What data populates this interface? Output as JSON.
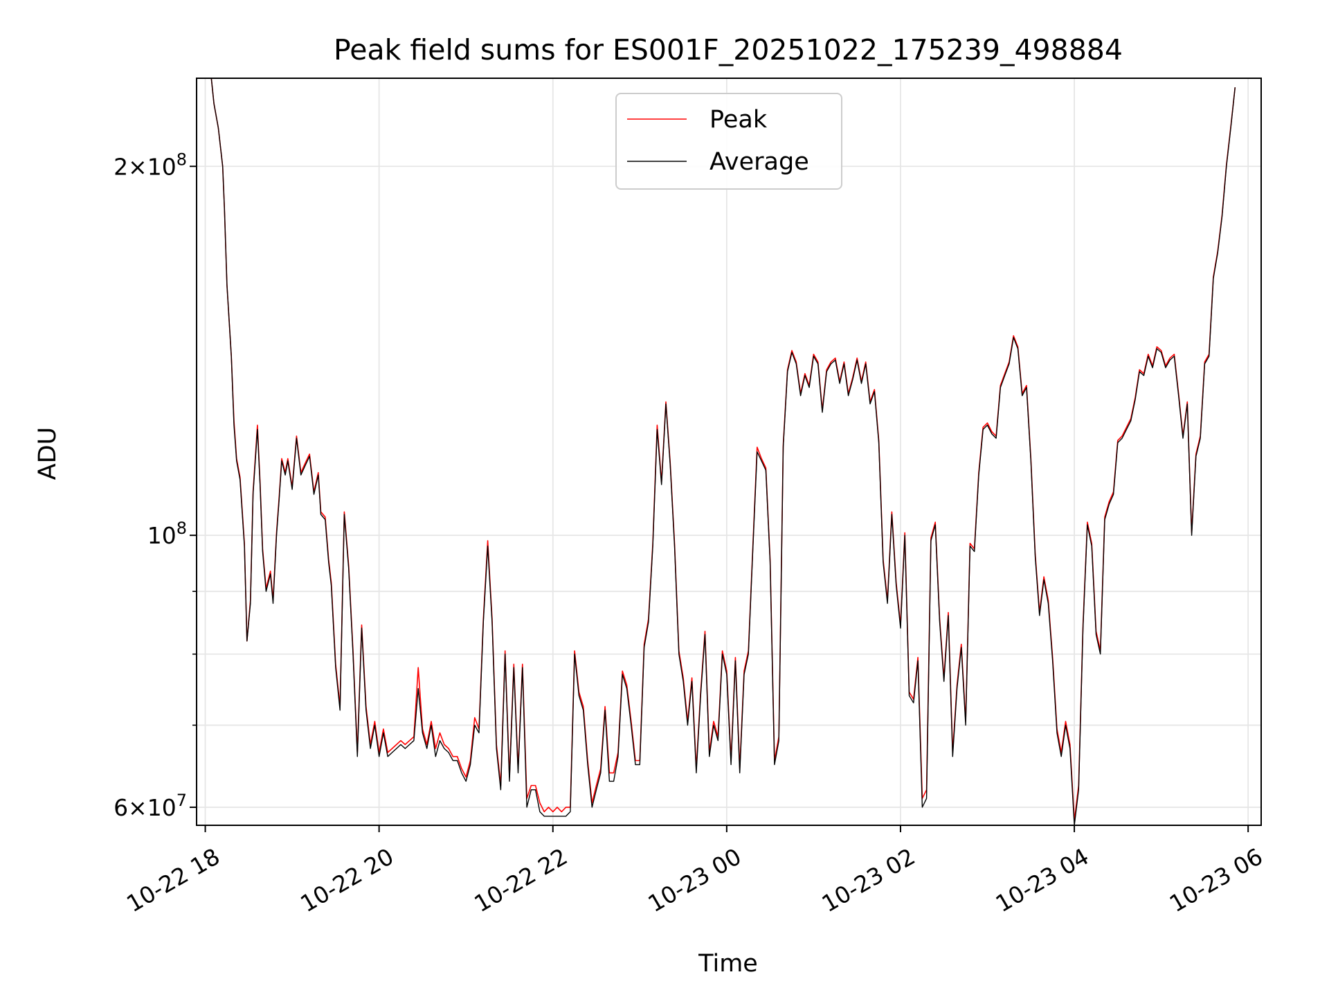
{
  "chart_data": {
    "type": "line",
    "title": "Peak field sums for ES001F_20251022_175239_498884",
    "xlabel": "Time",
    "ylabel": "ADU",
    "yscale": "log",
    "ylim": [
      58000000,
      236000000
    ],
    "xlim_hours": [
      -0.1,
      12.15
    ],
    "x_ticks": [
      {
        "hours": 0,
        "label": "10-22 18"
      },
      {
        "hours": 2,
        "label": "10-22 20"
      },
      {
        "hours": 4,
        "label": "10-22 22"
      },
      {
        "hours": 6,
        "label": "10-23 00"
      },
      {
        "hours": 8,
        "label": "10-23 02"
      },
      {
        "hours": 10,
        "label": "10-23 04"
      },
      {
        "hours": 12,
        "label": "10-23 06"
      }
    ],
    "y_major_ticks": [
      {
        "value": 60000000,
        "mantissa": "6",
        "base": "10",
        "exp": "7"
      },
      {
        "value": 100000000,
        "mantissa": "",
        "base": "10",
        "exp": "8"
      },
      {
        "value": 200000000,
        "mantissa": "2",
        "base": "10",
        "exp": "8"
      }
    ],
    "y_minor_ticks": [
      70000000,
      80000000,
      90000000
    ],
    "grid": true,
    "legend": {
      "location": "upper center",
      "entries": [
        "Peak",
        "Average"
      ]
    },
    "colors": {
      "peak": "#ff0000",
      "average": "#000000",
      "grid": "#e6e6e6"
    },
    "x_hours": [
      0.07,
      0.1,
      0.15,
      0.2,
      0.22,
      0.25,
      0.3,
      0.33,
      0.36,
      0.4,
      0.45,
      0.48,
      0.52,
      0.55,
      0.6,
      0.63,
      0.66,
      0.7,
      0.75,
      0.78,
      0.82,
      0.85,
      0.88,
      0.92,
      0.95,
      1.0,
      1.05,
      1.1,
      1.15,
      1.2,
      1.25,
      1.3,
      1.33,
      1.38,
      1.42,
      1.45,
      1.5,
      1.55,
      1.6,
      1.65,
      1.7,
      1.75,
      1.8,
      1.85,
      1.9,
      1.95,
      2.0,
      2.05,
      2.1,
      2.15,
      2.2,
      2.25,
      2.3,
      2.35,
      2.4,
      2.45,
      2.5,
      2.55,
      2.6,
      2.65,
      2.7,
      2.75,
      2.8,
      2.85,
      2.9,
      2.95,
      3.0,
      3.05,
      3.1,
      3.15,
      3.2,
      3.25,
      3.3,
      3.35,
      3.4,
      3.45,
      3.5,
      3.55,
      3.6,
      3.65,
      3.7,
      3.75,
      3.8,
      3.85,
      3.9,
      3.95,
      4.0,
      4.05,
      4.1,
      4.15,
      4.2,
      4.25,
      4.3,
      4.35,
      4.4,
      4.45,
      4.5,
      4.55,
      4.6,
      4.65,
      4.7,
      4.75,
      4.8,
      4.85,
      4.9,
      4.95,
      5.0,
      5.05,
      5.1,
      5.15,
      5.2,
      5.25,
      5.3,
      5.35,
      5.4,
      5.45,
      5.5,
      5.55,
      5.6,
      5.65,
      5.7,
      5.75,
      5.8,
      5.85,
      5.9,
      5.95,
      6.0,
      6.05,
      6.1,
      6.15,
      6.2,
      6.25,
      6.3,
      6.35,
      6.4,
      6.45,
      6.5,
      6.55,
      6.6,
      6.65,
      6.7,
      6.75,
      6.8,
      6.85,
      6.9,
      6.95,
      7.0,
      7.05,
      7.1,
      7.15,
      7.2,
      7.25,
      7.3,
      7.35,
      7.4,
      7.45,
      7.5,
      7.55,
      7.6,
      7.65,
      7.7,
      7.75,
      7.8,
      7.85,
      7.9,
      7.95,
      8.0,
      8.05,
      8.1,
      8.15,
      8.2,
      8.25,
      8.3,
      8.35,
      8.4,
      8.45,
      8.5,
      8.55,
      8.6,
      8.65,
      8.7,
      8.75,
      8.8,
      8.85,
      8.9,
      8.95,
      9.0,
      9.05,
      9.1,
      9.15,
      9.2,
      9.25,
      9.3,
      9.35,
      9.4,
      9.45,
      9.5,
      9.55,
      9.6,
      9.65,
      9.7,
      9.75,
      9.8,
      9.85,
      9.9,
      9.95,
      10.0,
      10.05,
      10.1,
      10.15,
      10.2,
      10.25,
      10.3,
      10.35,
      10.4,
      10.45,
      10.5,
      10.55,
      10.6,
      10.65,
      10.7,
      10.75,
      10.8,
      10.85,
      10.9,
      10.95,
      11.0,
      11.05,
      11.1,
      11.15,
      11.2,
      11.25,
      11.3,
      11.35,
      11.4,
      11.45,
      11.5,
      11.55,
      11.6,
      11.65,
      11.7,
      11.75,
      11.8,
      11.85,
      11.9,
      11.95,
      12.0,
      12.05
    ],
    "series": [
      {
        "name": "Average",
        "color": "#000000",
        "values": [
          236000000,
          225000000,
          215000000,
          200000000,
          185000000,
          160000000,
          140000000,
          123000000,
          115000000,
          111000000,
          98000000,
          82000000,
          88000000,
          108000000,
          122000000,
          110000000,
          97000000,
          90000000,
          93000000,
          88000000,
          100000000,
          107000000,
          115000000,
          112000000,
          115000000,
          109000000,
          120000000,
          112000000,
          114000000,
          116000000,
          108000000,
          112000000,
          104000000,
          103000000,
          95000000,
          91000000,
          78000000,
          72000000,
          104000000,
          94000000,
          80000000,
          66000000,
          84000000,
          72000000,
          67000000,
          70000000,
          66000000,
          69000000,
          66000000,
          66500000,
          67000000,
          67500000,
          67000000,
          67500000,
          68000000,
          75000000,
          69000000,
          67000000,
          70000000,
          66000000,
          68000000,
          67000000,
          66500000,
          65500000,
          65500000,
          64000000,
          63000000,
          65000000,
          70000000,
          69000000,
          85000000,
          98000000,
          85000000,
          67000000,
          62000000,
          80000000,
          63000000,
          78000000,
          64000000,
          78000000,
          60000000,
          62000000,
          62000000,
          59500000,
          59000000,
          59000000,
          59000000,
          59000000,
          59000000,
          59000000,
          59500000,
          80000000,
          74000000,
          72000000,
          65000000,
          60000000,
          62000000,
          64000000,
          72000000,
          63000000,
          63000000,
          66000000,
          77000000,
          75000000,
          70000000,
          65000000,
          65000000,
          81000000,
          85000000,
          98000000,
          122000000,
          110000000,
          128000000,
          114000000,
          98000000,
          80000000,
          76000000,
          70000000,
          76000000,
          64000000,
          74000000,
          83000000,
          66000000,
          70000000,
          68000000,
          80000000,
          77000000,
          65000000,
          79000000,
          64000000,
          77000000,
          80000000,
          97000000,
          117000000,
          115000000,
          113000000,
          95000000,
          65000000,
          68000000,
          118000000,
          136000000,
          141000000,
          138000000,
          130000000,
          135000000,
          132000000,
          140000000,
          138000000,
          126000000,
          136000000,
          138000000,
          139000000,
          133000000,
          138000000,
          130000000,
          134000000,
          139000000,
          133000000,
          138000000,
          128000000,
          131000000,
          119000000,
          95000000,
          88000000,
          104000000,
          91000000,
          84000000,
          100000000,
          74000000,
          73000000,
          79000000,
          60000000,
          61000000,
          99000000,
          102000000,
          85000000,
          76000000,
          86000000,
          66000000,
          75000000,
          81000000,
          70000000,
          98000000,
          97000000,
          112000000,
          122000000,
          123000000,
          121000000,
          120000000,
          132000000,
          135000000,
          138000000,
          145000000,
          142000000,
          130000000,
          132000000,
          115000000,
          96000000,
          86000000,
          92000000,
          88000000,
          79000000,
          69000000,
          66000000,
          70000000,
          67000000,
          58000000,
          62000000,
          84000000,
          102000000,
          98000000,
          83000000,
          80000000,
          103000000,
          106000000,
          108000000,
          119000000,
          120000000,
          122000000,
          124000000,
          129000000,
          136000000,
          135000000,
          140000000,
          137000000,
          142000000,
          141000000,
          137000000,
          139000000,
          140000000,
          130000000,
          120000000,
          128000000,
          100000000,
          116000000,
          120000000,
          138000000,
          140000000,
          162000000,
          170000000,
          182000000,
          200000000,
          215000000,
          232000000
        ]
      },
      {
        "name": "Peak",
        "color": "#ff0000",
        "values": [
          236000000,
          225000000,
          215000000,
          200000000,
          185000000,
          160000000,
          140000000,
          124000000,
          115500000,
          111500000,
          98500000,
          82000000,
          88500000,
          108500000,
          123000000,
          110500000,
          97500000,
          90500000,
          93500000,
          88500000,
          100500000,
          107500000,
          115500000,
          112500000,
          115500000,
          109500000,
          120500000,
          112500000,
          114500000,
          116500000,
          108500000,
          112500000,
          104500000,
          103500000,
          95500000,
          91500000,
          78500000,
          72500000,
          104500000,
          94500000,
          80500000,
          66500000,
          84500000,
          72500000,
          67500000,
          70500000,
          66500000,
          69500000,
          66500000,
          67000000,
          67500000,
          68000000,
          67500000,
          68000000,
          68500000,
          78000000,
          69500000,
          67500000,
          70500000,
          67000000,
          69000000,
          67500000,
          67000000,
          66000000,
          66000000,
          64500000,
          63500000,
          65500000,
          71000000,
          69500000,
          85500000,
          99000000,
          85500000,
          67500000,
          62500000,
          80500000,
          63500000,
          78500000,
          64500000,
          78500000,
          61000000,
          62500000,
          62500000,
          60500000,
          59500000,
          60000000,
          59500000,
          60000000,
          59500000,
          60000000,
          60000000,
          80500000,
          74500000,
          72500000,
          65500000,
          60500000,
          62500000,
          64500000,
          72500000,
          64000000,
          64000000,
          66500000,
          77500000,
          75500000,
          70500000,
          65500000,
          65500000,
          81500000,
          85500000,
          98500000,
          123000000,
          110500000,
          128500000,
          114500000,
          98500000,
          80500000,
          76500000,
          70500000,
          76500000,
          64500000,
          74500000,
          83500000,
          66500000,
          70500000,
          68500000,
          80500000,
          77500000,
          65500000,
          79500000,
          64500000,
          77500000,
          80500000,
          97500000,
          118000000,
          115500000,
          113500000,
          95500000,
          65500000,
          68500000,
          118500000,
          136500000,
          141500000,
          138500000,
          130500000,
          135500000,
          132500000,
          140500000,
          138500000,
          126500000,
          136500000,
          138500000,
          139500000,
          133500000,
          138500000,
          130500000,
          134500000,
          139500000,
          133500000,
          138500000,
          128500000,
          131500000,
          119500000,
          95500000,
          88500000,
          104500000,
          91500000,
          84500000,
          100500000,
          74500000,
          73500000,
          79500000,
          61000000,
          62000000,
          99500000,
          102500000,
          85500000,
          76500000,
          86500000,
          66500000,
          75500000,
          81500000,
          70500000,
          98500000,
          97500000,
          112500000,
          122500000,
          123500000,
          121500000,
          120500000,
          132500000,
          135500000,
          138500000,
          145500000,
          142500000,
          130500000,
          132500000,
          115500000,
          96500000,
          86500000,
          92500000,
          88500000,
          79500000,
          69500000,
          66500000,
          70500000,
          67500000,
          58500000,
          62500000,
          84500000,
          102500000,
          98500000,
          83500000,
          80500000,
          103500000,
          106500000,
          108500000,
          119500000,
          120500000,
          122500000,
          124500000,
          129500000,
          136500000,
          135500000,
          140500000,
          137500000,
          142500000,
          141500000,
          137500000,
          139500000,
          140500000,
          130500000,
          120500000,
          128500000,
          100500000,
          116500000,
          120500000,
          138500000,
          140500000,
          162500000,
          170500000,
          182500000,
          200500000,
          215500000,
          232000000
        ]
      }
    ]
  }
}
